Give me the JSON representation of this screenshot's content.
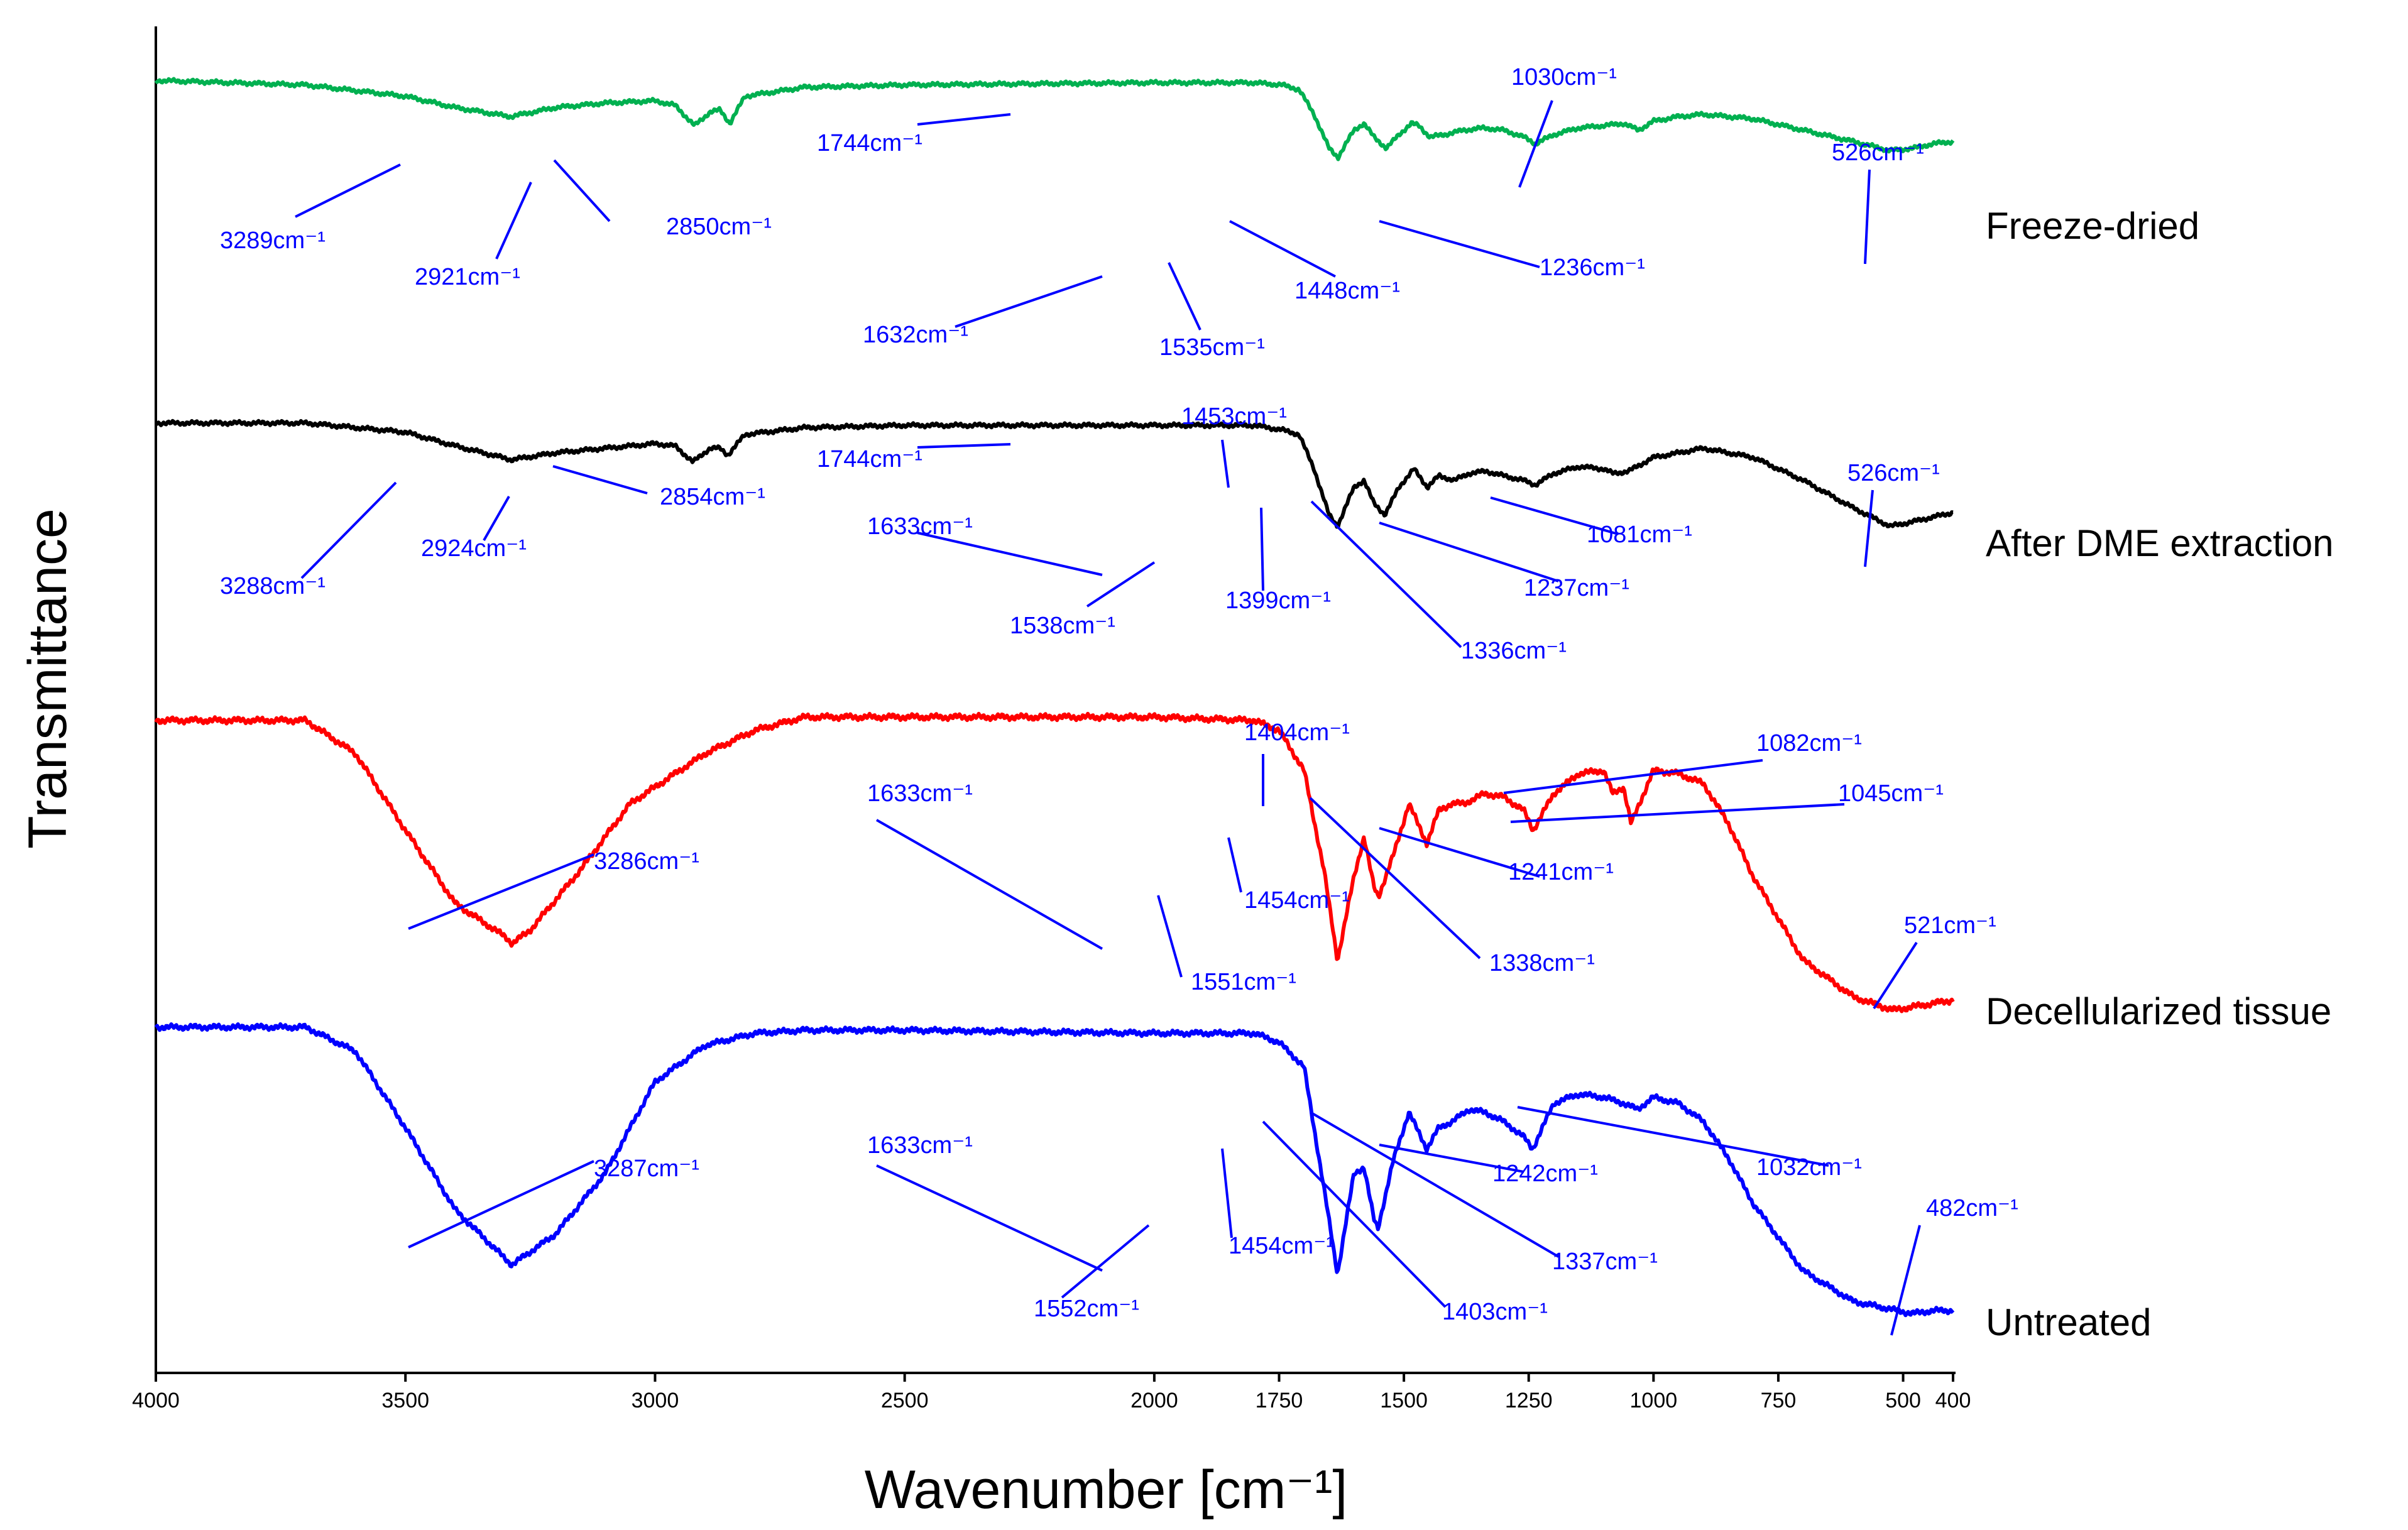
{
  "chart_data": {
    "type": "line",
    "title": "",
    "xlabel": "Wavenumber [cm⁻¹]",
    "ylabel": "Transmittance",
    "xlim": [
      4000,
      400
    ],
    "xticks": [
      4000,
      3500,
      3000,
      2500,
      2000,
      1750,
      1500,
      1250,
      1000,
      750,
      500,
      400
    ],
    "yticks_shown": false,
    "grid": false,
    "legend": "labels right of each trace",
    "series": [
      {
        "name": "Freeze-dried",
        "color": "#00b050",
        "points": [
          [
            4000,
            0.05
          ],
          [
            3700,
            0.07
          ],
          [
            3500,
            0.12
          ],
          [
            3400,
            0.17
          ],
          [
            3289,
            0.21
          ],
          [
            3200,
            0.17
          ],
          [
            3100,
            0.15
          ],
          [
            3000,
            0.14
          ],
          [
            2960,
            0.16
          ],
          [
            2921,
            0.25
          ],
          [
            2890,
            0.19
          ],
          [
            2870,
            0.18
          ],
          [
            2850,
            0.24
          ],
          [
            2820,
            0.12
          ],
          [
            2700,
            0.08
          ],
          [
            2500,
            0.07
          ],
          [
            2000,
            0.06
          ],
          [
            1800,
            0.06
          ],
          [
            1744,
            0.07
          ],
          [
            1710,
            0.09
          ],
          [
            1680,
            0.2
          ],
          [
            1650,
            0.35
          ],
          [
            1632,
            0.39
          ],
          [
            1600,
            0.27
          ],
          [
            1580,
            0.24
          ],
          [
            1560,
            0.3
          ],
          [
            1535,
            0.35
          ],
          [
            1510,
            0.29
          ],
          [
            1485,
            0.24
          ],
          [
            1470,
            0.25
          ],
          [
            1448,
            0.3
          ],
          [
            1420,
            0.29
          ],
          [
            1380,
            0.27
          ],
          [
            1340,
            0.26
          ],
          [
            1300,
            0.27
          ],
          [
            1260,
            0.3
          ],
          [
            1236,
            0.33
          ],
          [
            1200,
            0.29
          ],
          [
            1150,
            0.26
          ],
          [
            1100,
            0.25
          ],
          [
            1060,
            0.24
          ],
          [
            1030,
            0.27
          ],
          [
            1000,
            0.23
          ],
          [
            950,
            0.21
          ],
          [
            900,
            0.2
          ],
          [
            800,
            0.22
          ],
          [
            700,
            0.27
          ],
          [
            600,
            0.32
          ],
          [
            526,
            0.36
          ],
          [
            480,
            0.35
          ],
          [
            440,
            0.33
          ],
          [
            400,
            0.32
          ]
        ],
        "annotations": [
          "3289cm⁻¹",
          "2921cm⁻¹",
          "2850cm⁻¹",
          "1744cm⁻¹",
          "1632cm⁻¹",
          "1535cm⁻¹",
          "1448cm⁻¹",
          "1236cm⁻¹",
          "1030cm⁻¹",
          "526cm⁻¹"
        ]
      },
      {
        "name": "After DME extraction",
        "color": "#000000",
        "points": [
          [
            4000,
            0.05
          ],
          [
            3700,
            0.05
          ],
          [
            3500,
            0.09
          ],
          [
            3400,
            0.15
          ],
          [
            3288,
            0.21
          ],
          [
            3200,
            0.18
          ],
          [
            3100,
            0.16
          ],
          [
            3000,
            0.14
          ],
          [
            2960,
            0.15
          ],
          [
            2924,
            0.22
          ],
          [
            2890,
            0.16
          ],
          [
            2870,
            0.16
          ],
          [
            2854,
            0.19
          ],
          [
            2820,
            0.1
          ],
          [
            2700,
            0.07
          ],
          [
            2500,
            0.06
          ],
          [
            2000,
            0.06
          ],
          [
            1800,
            0.06
          ],
          [
            1744,
            0.08
          ],
          [
            1710,
            0.1
          ],
          [
            1680,
            0.25
          ],
          [
            1650,
            0.45
          ],
          [
            1633,
            0.5
          ],
          [
            1600,
            0.33
          ],
          [
            1580,
            0.3
          ],
          [
            1560,
            0.4
          ],
          [
            1538,
            0.45
          ],
          [
            1510,
            0.33
          ],
          [
            1480,
            0.25
          ],
          [
            1453,
            0.33
          ],
          [
            1430,
            0.28
          ],
          [
            1399,
            0.3
          ],
          [
            1370,
            0.27
          ],
          [
            1336,
            0.26
          ],
          [
            1300,
            0.28
          ],
          [
            1260,
            0.3
          ],
          [
            1237,
            0.32
          ],
          [
            1200,
            0.27
          ],
          [
            1150,
            0.24
          ],
          [
            1100,
            0.25
          ],
          [
            1081,
            0.27
          ],
          [
            1050,
            0.26
          ],
          [
            1000,
            0.2
          ],
          [
            950,
            0.18
          ],
          [
            900,
            0.16
          ],
          [
            800,
            0.2
          ],
          [
            700,
            0.3
          ],
          [
            600,
            0.42
          ],
          [
            526,
            0.5
          ],
          [
            480,
            0.48
          ],
          [
            440,
            0.46
          ],
          [
            400,
            0.44
          ]
        ],
        "annotations": [
          "3288cm⁻¹",
          "2924cm⁻¹",
          "2854cm⁻¹",
          "1744cm⁻¹",
          "1633cm⁻¹",
          "1538cm⁻¹",
          "1453cm⁻¹",
          "1399cm⁻¹",
          "1336cm⁻¹",
          "1237cm⁻¹",
          "1081cm⁻¹",
          "526cm⁻¹"
        ]
      },
      {
        "name": "Decellularized tissue",
        "color": "#ff0000",
        "points": [
          [
            4000,
            0.05
          ],
          [
            3700,
            0.05
          ],
          [
            3600,
            0.15
          ],
          [
            3500,
            0.38
          ],
          [
            3400,
            0.6
          ],
          [
            3300,
            0.7
          ],
          [
            3286,
            0.72
          ],
          [
            3250,
            0.68
          ],
          [
            3150,
            0.5
          ],
          [
            3050,
            0.3
          ],
          [
            2900,
            0.15
          ],
          [
            2800,
            0.08
          ],
          [
            2700,
            0.04
          ],
          [
            2500,
            0.04
          ],
          [
            2000,
            0.04
          ],
          [
            1800,
            0.05
          ],
          [
            1750,
            0.08
          ],
          [
            1700,
            0.2
          ],
          [
            1660,
            0.5
          ],
          [
            1633,
            0.77
          ],
          [
            1600,
            0.52
          ],
          [
            1580,
            0.4
          ],
          [
            1560,
            0.55
          ],
          [
            1551,
            0.58
          ],
          [
            1520,
            0.45
          ],
          [
            1490,
            0.3
          ],
          [
            1454,
            0.42
          ],
          [
            1430,
            0.32
          ],
          [
            1404,
            0.3
          ],
          [
            1380,
            0.3
          ],
          [
            1338,
            0.27
          ],
          [
            1300,
            0.28
          ],
          [
            1260,
            0.32
          ],
          [
            1241,
            0.38
          ],
          [
            1200,
            0.27
          ],
          [
            1150,
            0.21
          ],
          [
            1100,
            0.2
          ],
          [
            1082,
            0.27
          ],
          [
            1060,
            0.25
          ],
          [
            1045,
            0.36
          ],
          [
            1000,
            0.2
          ],
          [
            950,
            0.21
          ],
          [
            900,
            0.24
          ],
          [
            850,
            0.36
          ],
          [
            800,
            0.52
          ],
          [
            700,
            0.77
          ],
          [
            600,
            0.88
          ],
          [
            521,
            0.92
          ],
          [
            480,
            0.91
          ],
          [
            440,
            0.9
          ],
          [
            400,
            0.89
          ]
        ],
        "annotations": [
          "3286cm⁻¹",
          "1633cm⁻¹",
          "1551cm⁻¹",
          "1454cm⁻¹",
          "1404cm⁻¹",
          "1338cm⁻¹",
          "1241cm⁻¹",
          "1082cm⁻¹",
          "1045cm⁻¹",
          "521cm⁻¹"
        ]
      },
      {
        "name": "Untreated",
        "color": "#0000ff",
        "points": [
          [
            4000,
            0.02
          ],
          [
            3700,
            0.02
          ],
          [
            3600,
            0.1
          ],
          [
            3500,
            0.35
          ],
          [
            3400,
            0.62
          ],
          [
            3300,
            0.78
          ],
          [
            3287,
            0.8
          ],
          [
            3200,
            0.7
          ],
          [
            3100,
            0.5
          ],
          [
            3000,
            0.2
          ],
          [
            2900,
            0.08
          ],
          [
            2800,
            0.04
          ],
          [
            2700,
            0.03
          ],
          [
            2500,
            0.03
          ],
          [
            2000,
            0.04
          ],
          [
            1800,
            0.04
          ],
          [
            1750,
            0.07
          ],
          [
            1700,
            0.15
          ],
          [
            1660,
            0.55
          ],
          [
            1633,
            0.83
          ],
          [
            1600,
            0.5
          ],
          [
            1580,
            0.48
          ],
          [
            1560,
            0.65
          ],
          [
            1552,
            0.68
          ],
          [
            1520,
            0.45
          ],
          [
            1490,
            0.3
          ],
          [
            1454,
            0.42
          ],
          [
            1430,
            0.35
          ],
          [
            1403,
            0.33
          ],
          [
            1370,
            0.29
          ],
          [
            1337,
            0.3
          ],
          [
            1300,
            0.33
          ],
          [
            1260,
            0.38
          ],
          [
            1242,
            0.42
          ],
          [
            1200,
            0.27
          ],
          [
            1150,
            0.24
          ],
          [
            1100,
            0.25
          ],
          [
            1060,
            0.27
          ],
          [
            1032,
            0.29
          ],
          [
            1000,
            0.25
          ],
          [
            950,
            0.27
          ],
          [
            900,
            0.33
          ],
          [
            850,
            0.45
          ],
          [
            800,
            0.6
          ],
          [
            700,
            0.82
          ],
          [
            600,
            0.92
          ],
          [
            482,
            0.96
          ],
          [
            440,
            0.95
          ],
          [
            400,
            0.95
          ]
        ],
        "annotations": [
          "3287cm⁻¹",
          "1633cm⁻¹",
          "1552cm⁻¹",
          "1454cm⁻¹",
          "1403cm⁻¹",
          "1337cm⁻¹",
          "1242cm⁻¹",
          "1032cm⁻¹",
          "482cm⁻¹"
        ]
      }
    ]
  }
}
